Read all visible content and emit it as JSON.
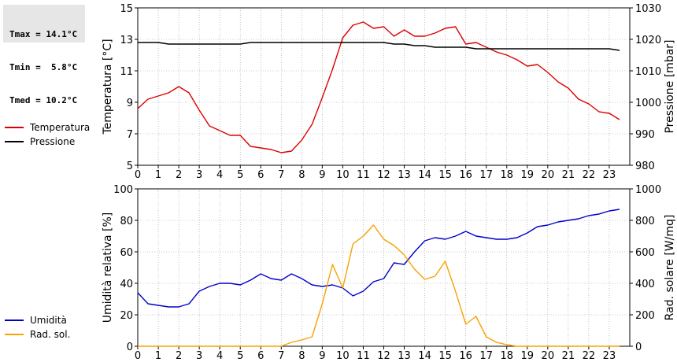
{
  "stats": {
    "tmax": "Tmax = 14.1°C",
    "tmin": "Tmin =  5.8°C",
    "tmed": "Tmed = 10.2°C"
  },
  "chart_data": [
    {
      "type": "line",
      "ylabel": "Temperatura [°C]",
      "y2label": "Pressione [mbar]",
      "ylim": [
        5,
        15
      ],
      "y2lim": [
        980,
        1030
      ],
      "yticks": [
        5,
        7,
        9,
        11,
        13,
        15
      ],
      "y2ticks": [
        980,
        990,
        1000,
        1010,
        1020,
        1030
      ],
      "xlim": [
        0,
        24
      ],
      "xticks": [
        0,
        1,
        2,
        3,
        4,
        5,
        6,
        7,
        8,
        9,
        10,
        11,
        12,
        13,
        14,
        15,
        16,
        17,
        18,
        19,
        20,
        21,
        22,
        23
      ],
      "grid": true,
      "legend": [
        {
          "label": "Temperatura",
          "color": "#dd0000"
        },
        {
          "label": "Pressione",
          "color": "#000000"
        }
      ],
      "series": [
        {
          "name": "Temperatura",
          "axis": "left",
          "color": "#dd0000",
          "x": [
            0,
            0.5,
            1,
            1.5,
            2,
            2.5,
            3,
            3.5,
            4,
            4.5,
            5,
            5.5,
            6,
            6.5,
            7,
            7.5,
            8,
            8.5,
            9,
            9.5,
            10,
            10.5,
            11,
            11.5,
            12,
            12.5,
            13,
            13.5,
            14,
            14.5,
            15,
            15.5,
            16,
            16.5,
            17,
            17.5,
            18,
            18.5,
            19,
            19.5,
            20,
            20.5,
            21,
            21.5,
            22,
            22.5,
            23,
            23.5
          ],
          "y": [
            8.6,
            9.2,
            9.4,
            9.6,
            10.0,
            9.6,
            8.5,
            7.5,
            7.2,
            6.9,
            6.9,
            6.2,
            6.1,
            6.0,
            5.8,
            5.9,
            6.6,
            7.6,
            9.3,
            11.1,
            13.1,
            13.9,
            14.1,
            13.7,
            13.8,
            13.2,
            13.6,
            13.2,
            13.2,
            13.4,
            13.7,
            13.8,
            12.7,
            12.8,
            12.5,
            12.2,
            12.0,
            11.7,
            11.3,
            11.4,
            10.9,
            10.3,
            9.9,
            9.2,
            8.9,
            8.4,
            8.3,
            7.9
          ]
        },
        {
          "name": "Pressione",
          "axis": "right",
          "color": "#000000",
          "x": [
            0,
            0.5,
            1,
            1.5,
            2,
            2.5,
            3,
            3.5,
            4,
            4.5,
            5,
            5.5,
            6,
            6.5,
            7,
            7.5,
            8,
            8.5,
            9,
            9.5,
            10,
            10.5,
            11,
            11.5,
            12,
            12.5,
            13,
            13.5,
            14,
            14.5,
            15,
            15.5,
            16,
            16.5,
            17,
            17.5,
            18,
            18.5,
            19,
            19.5,
            20,
            20.5,
            21,
            21.5,
            22,
            22.5,
            23,
            23.5
          ],
          "y": [
            1019,
            1019,
            1019,
            1018.5,
            1018.5,
            1018.5,
            1018.5,
            1018.5,
            1018.5,
            1018.5,
            1018.5,
            1019,
            1019,
            1019,
            1019,
            1019,
            1019,
            1019,
            1019,
            1019,
            1019,
            1019,
            1019,
            1019,
            1019,
            1018.5,
            1018.5,
            1018,
            1018,
            1017.5,
            1017.5,
            1017.5,
            1017.5,
            1017,
            1017,
            1017,
            1017,
            1017,
            1017,
            1017,
            1017,
            1017,
            1017,
            1017,
            1017,
            1017,
            1017,
            1016.5
          ]
        }
      ]
    },
    {
      "type": "line",
      "ylabel": "Umidità relativa [%]",
      "y2label": "Rad. solare [W/mq]",
      "ylim": [
        0,
        100
      ],
      "y2lim": [
        0,
        1000
      ],
      "yticks": [
        0,
        20,
        40,
        60,
        80,
        100
      ],
      "y2ticks": [
        0,
        200,
        400,
        600,
        800,
        1000
      ],
      "xlim": [
        0,
        24
      ],
      "xticks": [
        0,
        1,
        2,
        3,
        4,
        5,
        6,
        7,
        8,
        9,
        10,
        11,
        12,
        13,
        14,
        15,
        16,
        17,
        18,
        19,
        20,
        21,
        22,
        23
      ],
      "grid": true,
      "legend": [
        {
          "label": "Umidità",
          "color": "#0000cc"
        },
        {
          "label": "Rad. sol.",
          "color": "#f5a300"
        }
      ],
      "series": [
        {
          "name": "Umidità",
          "axis": "left",
          "color": "#0000cc",
          "x": [
            0,
            0.5,
            1,
            1.5,
            2,
            2.5,
            3,
            3.5,
            4,
            4.5,
            5,
            5.5,
            6,
            6.5,
            7,
            7.5,
            8,
            8.5,
            9,
            9.5,
            10,
            10.5,
            11,
            11.5,
            12,
            12.5,
            13,
            13.5,
            14,
            14.5,
            15,
            15.5,
            16,
            16.5,
            17,
            17.5,
            18,
            18.5,
            19,
            19.5,
            20,
            20.5,
            21,
            21.5,
            22,
            22.5,
            23,
            23.5
          ],
          "y": [
            34,
            27,
            26,
            25,
            25,
            27,
            35,
            38,
            40,
            40,
            39,
            42,
            46,
            43,
            42,
            46,
            43,
            39,
            38,
            39,
            37,
            32,
            35,
            41,
            43,
            53,
            52,
            60,
            67,
            69,
            68,
            70,
            73,
            70,
            69,
            68,
            68,
            69,
            72,
            76,
            77,
            79,
            80,
            81,
            83,
            84,
            86,
            87
          ]
        },
        {
          "name": "Rad. sol.",
          "axis": "right",
          "color": "#f5a300",
          "x": [
            0,
            0.5,
            1,
            1.5,
            2,
            2.5,
            3,
            3.5,
            4,
            4.5,
            5,
            5.5,
            6,
            6.5,
            7,
            7.5,
            8,
            8.5,
            9,
            9.5,
            10,
            10.5,
            11,
            11.5,
            12,
            12.5,
            13,
            13.5,
            14,
            14.5,
            15,
            15.5,
            16,
            16.5,
            17,
            17.5,
            18,
            18.5,
            19,
            19.5,
            20,
            20.5,
            21,
            21.5,
            22,
            22.5,
            23,
            23.5
          ],
          "y": [
            0,
            0,
            0,
            0,
            0,
            0,
            0,
            0,
            0,
            0,
            0,
            0,
            0,
            0,
            0,
            25,
            40,
            60,
            270,
            520,
            370,
            650,
            700,
            770,
            680,
            640,
            580,
            490,
            425,
            445,
            540,
            350,
            140,
            190,
            60,
            25,
            10,
            0,
            0,
            0,
            0,
            0,
            0,
            0,
            0,
            0,
            0,
            0
          ]
        }
      ]
    }
  ]
}
